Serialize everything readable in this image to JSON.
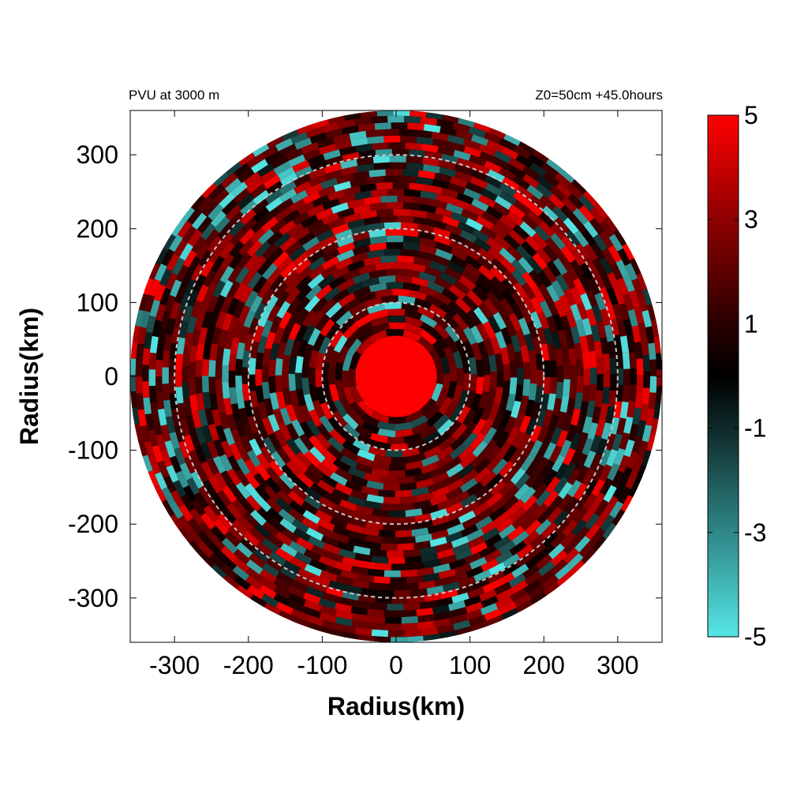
{
  "chart_data": {
    "type": "heatmap",
    "title_left": "PVU at  3000 m",
    "title_right": "Z0=50cm  +45.0hours",
    "xlabel": "Radius(km)",
    "ylabel": "Radius(km)",
    "xlim": [
      -360,
      360
    ],
    "ylim": [
      -360,
      360
    ],
    "x_ticks": [
      "-300",
      "-200",
      "-100",
      "0",
      "100",
      "200",
      "300"
    ],
    "y_ticks": [
      "300",
      "200",
      "100",
      "0",
      "-100",
      "-200",
      "-300"
    ],
    "x_tick_values": [
      -300,
      -200,
      -100,
      0,
      100,
      200,
      300
    ],
    "y_tick_values": [
      300,
      200,
      100,
      0,
      -100,
      -200,
      -300
    ],
    "domain_radius_km": 360,
    "reference_circles_km": [
      100,
      200,
      300
    ],
    "core": {
      "value": 5,
      "radius_km": 55
    },
    "colorbar": {
      "min": -5,
      "max": 5,
      "tick_labels": [
        "5",
        "3",
        "1",
        "-1",
        "-3",
        "-5"
      ],
      "tick_values": [
        5,
        3,
        1,
        -1,
        -3,
        -5
      ],
      "stops": [
        {
          "value": -5,
          "color": "#55e6e6"
        },
        {
          "value": -3,
          "color": "#2f8787"
        },
        {
          "value": -1,
          "color": "#0f2929"
        },
        {
          "value": 0,
          "color": "#000000"
        },
        {
          "value": 1,
          "color": "#2a0000"
        },
        {
          "value": 3,
          "color": "#8f0000"
        },
        {
          "value": 5,
          "color": "#ff0000"
        }
      ]
    }
  }
}
